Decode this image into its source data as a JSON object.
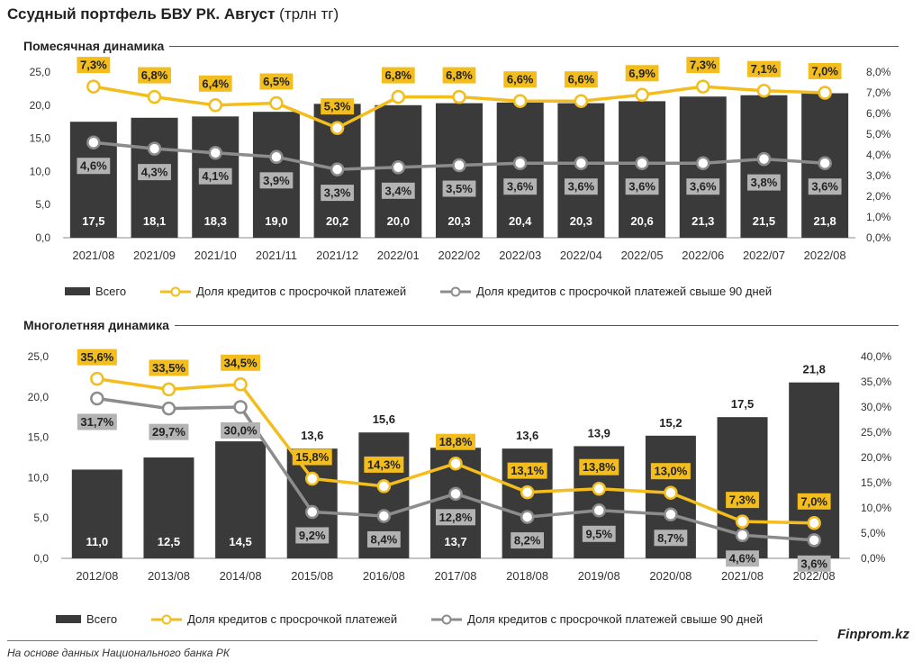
{
  "title": "Ссудный портфель БВУ РК. Август",
  "title_unit": "(трлн тг)",
  "colors": {
    "bar": "#3a3a3a",
    "yellow": "#f2bd1d",
    "gray": "#8c8c8c",
    "gray_label": "#b3b3b3"
  },
  "legend": {
    "total": "Всего",
    "overdue": "Доля кредитов с просрочкой платежей",
    "overdue90": "Доля кредитов с просрочкой платежей свыше 90 дней"
  },
  "footer": {
    "source": "На основе данных Национального банка РК",
    "brand": "Finprom.kz"
  },
  "chart_data": [
    {
      "type": "bar",
      "title": "Помесячная динамика",
      "categories": [
        "2021/08",
        "2021/09",
        "2021/10",
        "2021/11",
        "2021/12",
        "2022/01",
        "2022/02",
        "2022/03",
        "2022/04",
        "2022/05",
        "2022/06",
        "2022/07",
        "2022/08"
      ],
      "ylim": [
        0,
        25
      ],
      "y_ticks": [
        "0,0",
        "5,0",
        "10,0",
        "15,0",
        "20,0",
        "25,0"
      ],
      "y2lim": [
        0,
        8
      ],
      "y2_ticks": [
        "0,0%",
        "1,0%",
        "2,0%",
        "3,0%",
        "4,0%",
        "5,0%",
        "6,0%",
        "7,0%",
        "8,0%"
      ],
      "series": [
        {
          "name": "Всего",
          "type": "bar",
          "axis": "left",
          "values": [
            17.5,
            18.1,
            18.3,
            19.0,
            20.2,
            20.0,
            20.3,
            20.4,
            20.3,
            20.6,
            21.3,
            21.5,
            21.8
          ],
          "labels": [
            "17,5",
            "18,1",
            "18,3",
            "19,0",
            "20,2",
            "20,0",
            "20,3",
            "20,4",
            "20,3",
            "20,6",
            "21,3",
            "21,5",
            "21,8"
          ]
        },
        {
          "name": "Доля кредитов с просрочкой платежей",
          "type": "line",
          "axis": "right",
          "values": [
            7.3,
            6.8,
            6.4,
            6.5,
            5.3,
            6.8,
            6.8,
            6.6,
            6.6,
            6.9,
            7.3,
            7.1,
            7.0
          ],
          "labels": [
            "7,3%",
            "6,8%",
            "6,4%",
            "6,5%",
            "5,3%",
            "6,8%",
            "6,8%",
            "6,6%",
            "6,6%",
            "6,9%",
            "7,3%",
            "7,1%",
            "7,0%"
          ]
        },
        {
          "name": "Доля кредитов с просрочкой платежей свыше 90 дней",
          "type": "line",
          "axis": "right",
          "values": [
            4.6,
            4.3,
            4.1,
            3.9,
            3.3,
            3.4,
            3.5,
            3.6,
            3.6,
            3.6,
            3.6,
            3.8,
            3.6
          ],
          "labels": [
            "4,6%",
            "4,3%",
            "4,1%",
            "3,9%",
            "3,3%",
            "3,4%",
            "3,5%",
            "3,6%",
            "3,6%",
            "3,6%",
            "3,6%",
            "3,8%",
            "3,6%"
          ]
        }
      ]
    },
    {
      "type": "bar",
      "title": "Многолетняя динамика",
      "categories": [
        "2012/08",
        "2013/08",
        "2014/08",
        "2015/08",
        "2016/08",
        "2017/08",
        "2018/08",
        "2019/08",
        "2020/08",
        "2021/08",
        "2022/08"
      ],
      "ylim": [
        0,
        25
      ],
      "y_ticks": [
        "0,0",
        "5,0",
        "10,0",
        "15,0",
        "20,0",
        "25,0"
      ],
      "y2lim": [
        0,
        40
      ],
      "y2_ticks": [
        "0,0%",
        "5,0%",
        "10,0%",
        "15,0%",
        "20,0%",
        "25,0%",
        "30,0%",
        "35,0%",
        "40,0%"
      ],
      "series": [
        {
          "name": "Всего",
          "type": "bar",
          "axis": "left",
          "values": [
            11.0,
            12.5,
            14.5,
            13.6,
            15.6,
            13.7,
            13.6,
            13.9,
            15.2,
            17.5,
            21.8
          ],
          "labels": [
            "11,0",
            "12,5",
            "14,5",
            "13,6",
            "15,6",
            "13,7",
            "13,6",
            "13,9",
            "15,2",
            "17,5",
            "21,8"
          ]
        },
        {
          "name": "Доля кредитов с просрочкой платежей",
          "type": "line",
          "axis": "right",
          "values": [
            35.6,
            33.5,
            34.5,
            15.8,
            14.3,
            18.8,
            13.1,
            13.8,
            13.0,
            7.3,
            7.0
          ],
          "labels": [
            "35,6%",
            "33,5%",
            "34,5%",
            "15,8%",
            "14,3%",
            "18,8%",
            "13,1%",
            "13,8%",
            "13,0%",
            "7,3%",
            "7,0%"
          ]
        },
        {
          "name": "Доля кредитов с просрочкой платежей свыше 90 дней",
          "type": "line",
          "axis": "right",
          "values": [
            31.7,
            29.7,
            30.0,
            9.2,
            8.4,
            12.8,
            8.2,
            9.5,
            8.7,
            4.6,
            3.6
          ],
          "labels": [
            "31,7%",
            "29,7%",
            "30,0%",
            "9,2%",
            "8,4%",
            "12,8%",
            "8,2%",
            "9,5%",
            "8,7%",
            "4,6%",
            "3,6%"
          ]
        }
      ]
    }
  ]
}
